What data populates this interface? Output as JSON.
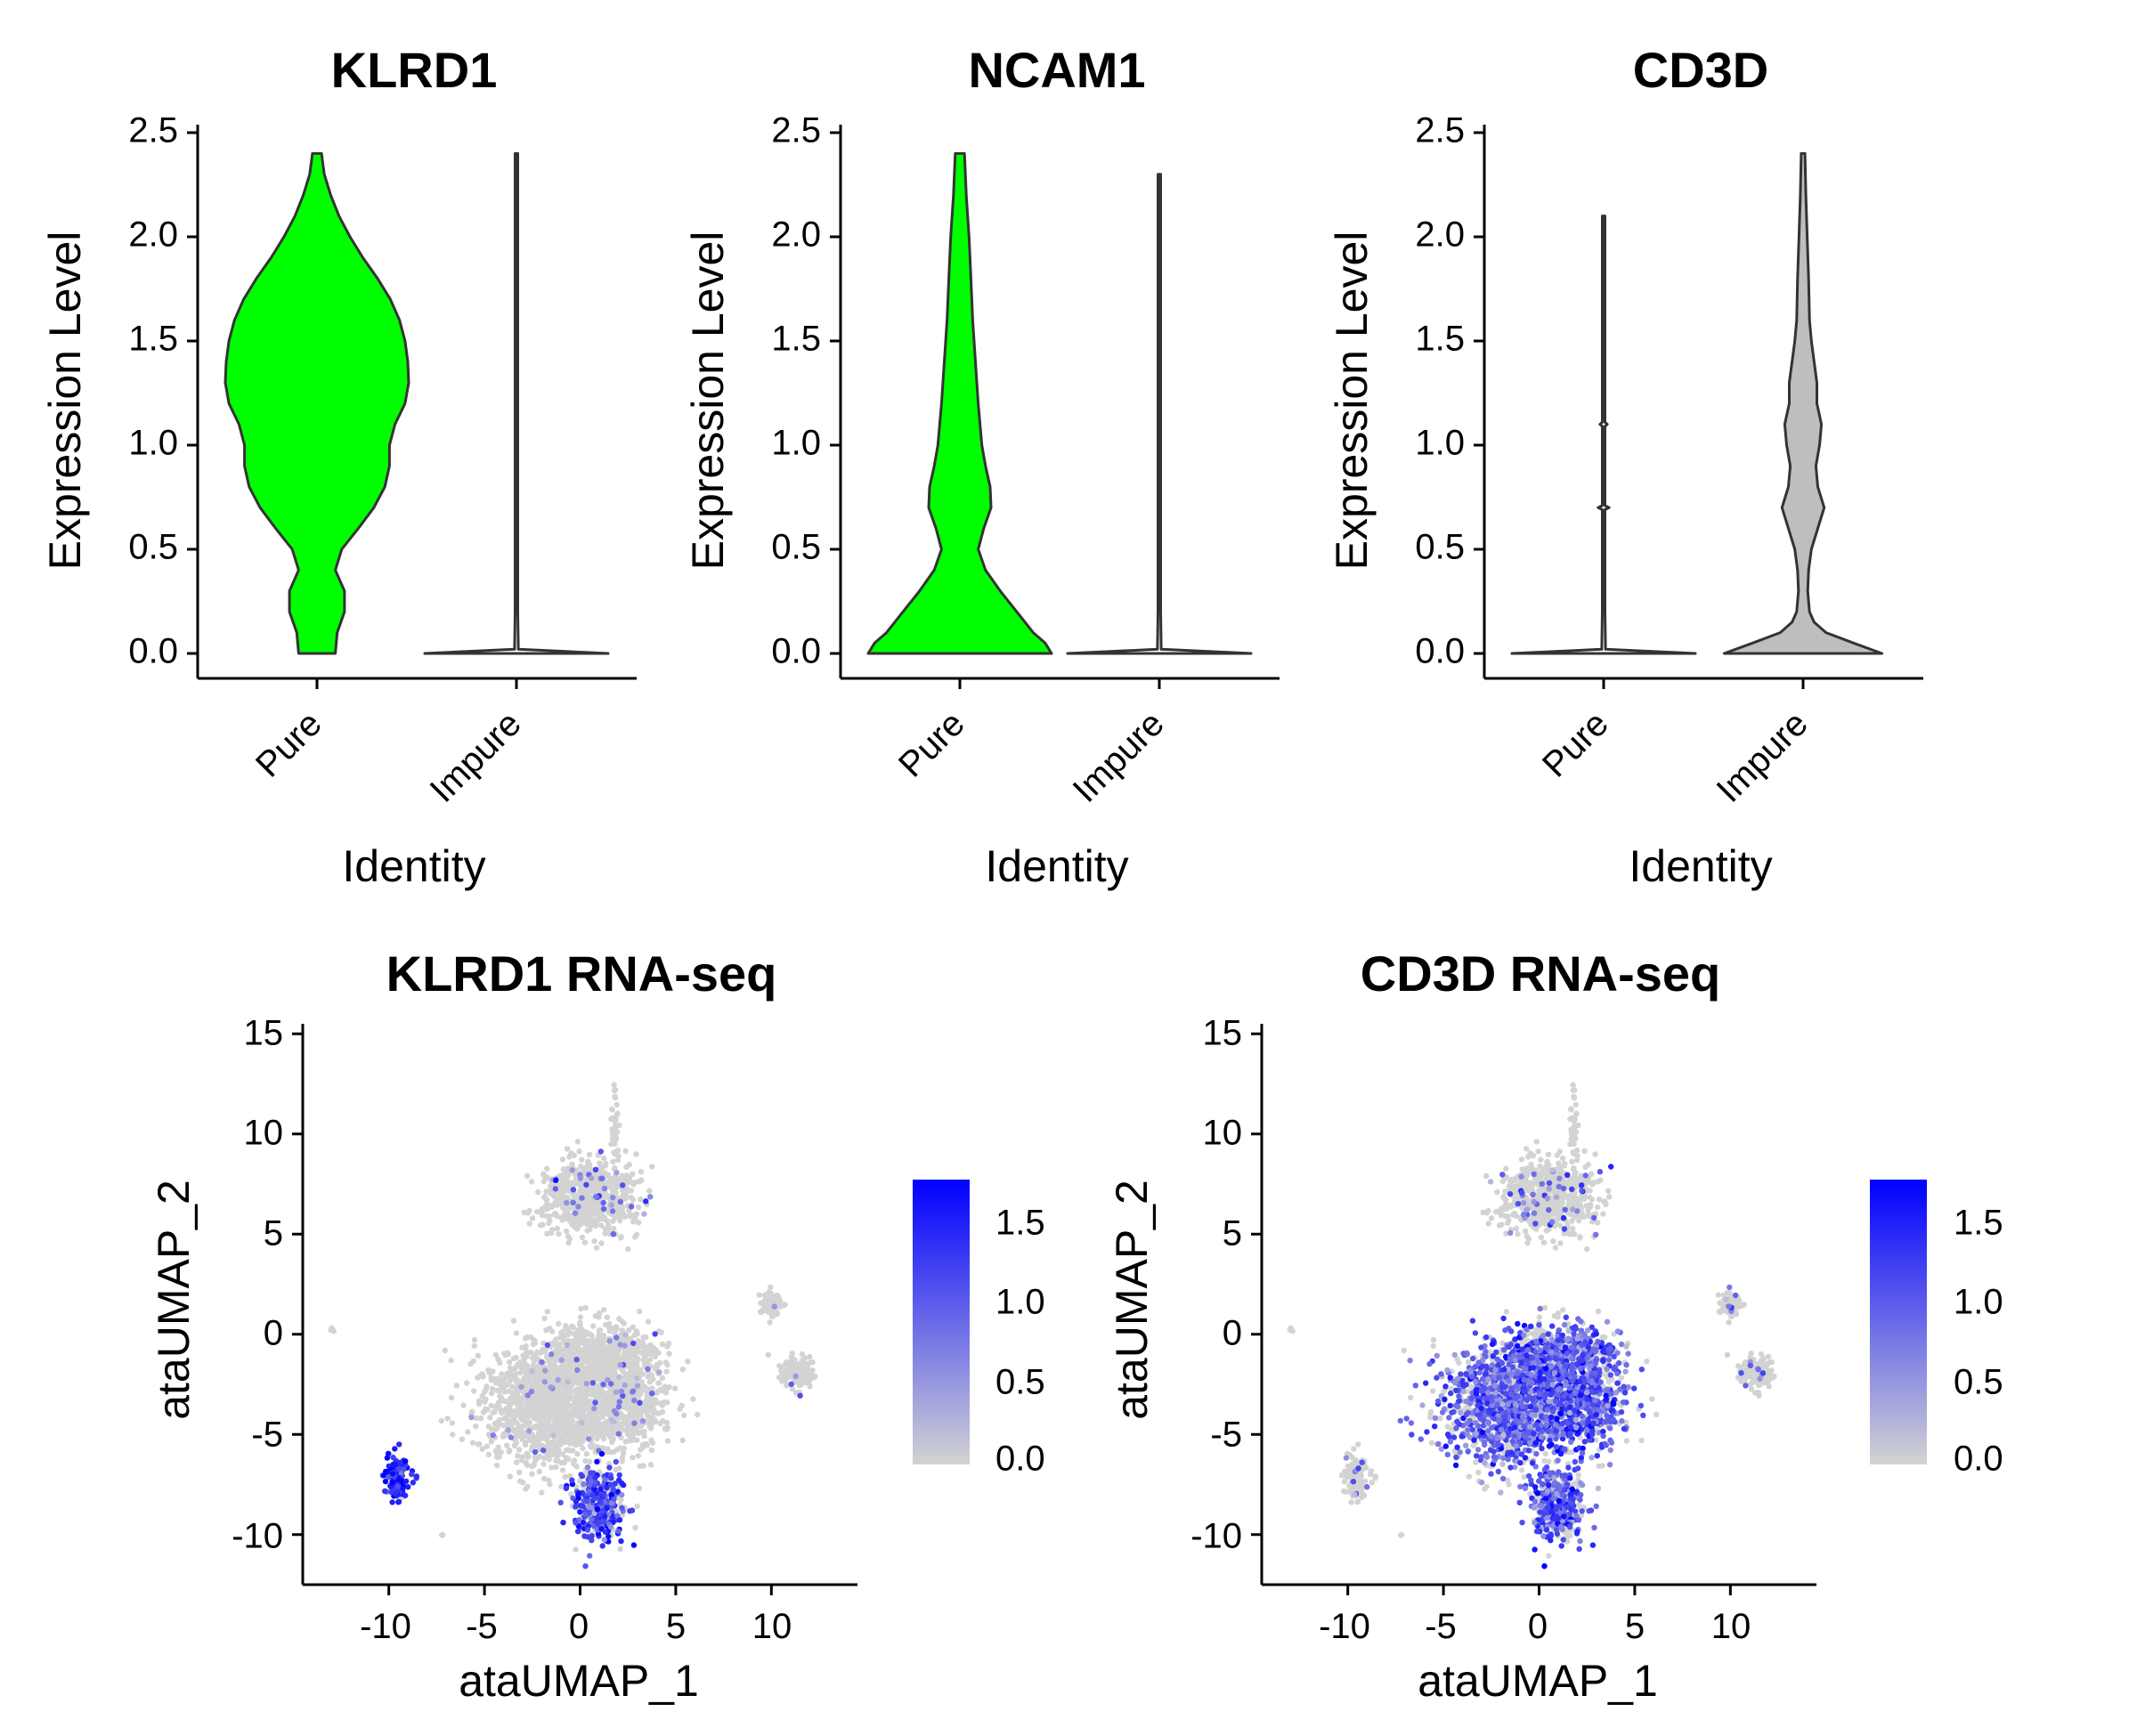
{
  "chart_data": [
    {
      "type": "violin",
      "title": "KLRD1",
      "xlabel": "Identity",
      "ylabel": "Expression Level",
      "categories": [
        "Pure",
        "Impure"
      ],
      "ylim": [
        0,
        2.5
      ],
      "yticks": [
        "0.0",
        "0.5",
        "1.0",
        "1.5",
        "2.0",
        "2.5"
      ],
      "series": [
        {
          "category": "Pure",
          "color": "#00ff00",
          "max": 2.4,
          "density": [
            [
              0,
              0.2
            ],
            [
              0.1,
              0.22
            ],
            [
              0.2,
              0.3
            ],
            [
              0.3,
              0.3
            ],
            [
              0.4,
              0.2
            ],
            [
              0.5,
              0.27
            ],
            [
              0.6,
              0.45
            ],
            [
              0.7,
              0.62
            ],
            [
              0.8,
              0.74
            ],
            [
              0.9,
              0.79
            ],
            [
              1.0,
              0.79
            ],
            [
              1.1,
              0.85
            ],
            [
              1.2,
              0.96
            ],
            [
              1.3,
              1.0
            ],
            [
              1.4,
              0.99
            ],
            [
              1.5,
              0.96
            ],
            [
              1.6,
              0.9
            ],
            [
              1.7,
              0.8
            ],
            [
              1.8,
              0.66
            ],
            [
              1.9,
              0.5
            ],
            [
              2.0,
              0.36
            ],
            [
              2.1,
              0.24
            ],
            [
              2.2,
              0.15
            ],
            [
              2.3,
              0.08
            ],
            [
              2.4,
              0.05
            ]
          ]
        },
        {
          "category": "Impure",
          "color": "#ffffff",
          "max": 2.4,
          "density": [
            [
              0,
              1.0
            ],
            [
              0.02,
              0.02
            ],
            [
              0.2,
              0.015
            ],
            [
              2.4,
              0.015
            ]
          ]
        }
      ]
    },
    {
      "type": "violin",
      "title": "NCAM1",
      "xlabel": "Identity",
      "ylabel": "Expression Level",
      "categories": [
        "Pure",
        "Impure"
      ],
      "ylim": [
        0,
        2.5
      ],
      "yticks": [
        "0.0",
        "0.5",
        "1.0",
        "1.5",
        "2.0",
        "2.5"
      ],
      "series": [
        {
          "category": "Pure",
          "color": "#00ff00",
          "max": 2.4,
          "density": [
            [
              0,
              1.0
            ],
            [
              0.05,
              0.93
            ],
            [
              0.1,
              0.8
            ],
            [
              0.2,
              0.62
            ],
            [
              0.3,
              0.44
            ],
            [
              0.4,
              0.28
            ],
            [
              0.5,
              0.2
            ],
            [
              0.6,
              0.26
            ],
            [
              0.7,
              0.34
            ],
            [
              0.8,
              0.33
            ],
            [
              0.9,
              0.28
            ],
            [
              1.0,
              0.24
            ],
            [
              1.2,
              0.2
            ],
            [
              1.4,
              0.17
            ],
            [
              1.6,
              0.14
            ],
            [
              1.8,
              0.12
            ],
            [
              2.0,
              0.1
            ],
            [
              2.2,
              0.07
            ],
            [
              2.4,
              0.05
            ]
          ]
        },
        {
          "category": "Impure",
          "color": "#ffffff",
          "max": 2.3,
          "density": [
            [
              0,
              1.0
            ],
            [
              0.02,
              0.02
            ],
            [
              0.2,
              0.015
            ],
            [
              2.3,
              0.015
            ]
          ]
        }
      ]
    },
    {
      "type": "violin",
      "title": "CD3D",
      "xlabel": "Identity",
      "ylabel": "Expression Level",
      "categories": [
        "Pure",
        "Impure"
      ],
      "ylim": [
        0,
        2.5
      ],
      "yticks": [
        "0.0",
        "0.5",
        "1.0",
        "1.5",
        "2.0",
        "2.5"
      ],
      "series": [
        {
          "category": "Pure",
          "color": "#ffffff",
          "max": 2.1,
          "density": [
            [
              0,
              1.0
            ],
            [
              0.02,
              0.02
            ],
            [
              0.2,
              0.015
            ],
            [
              0.69,
              0.015
            ],
            [
              0.7,
              0.06
            ],
            [
              0.71,
              0.015
            ],
            [
              1.09,
              0.015
            ],
            [
              1.1,
              0.04
            ],
            [
              1.11,
              0.015
            ],
            [
              2.1,
              0.015
            ]
          ]
        },
        {
          "category": "Impure",
          "color": "#bebebe",
          "max": 2.4,
          "density": [
            [
              0,
              0.86
            ],
            [
              0.05,
              0.55
            ],
            [
              0.1,
              0.25
            ],
            [
              0.15,
              0.12
            ],
            [
              0.2,
              0.07
            ],
            [
              0.3,
              0.05
            ],
            [
              0.4,
              0.06
            ],
            [
              0.5,
              0.09
            ],
            [
              0.6,
              0.16
            ],
            [
              0.7,
              0.23
            ],
            [
              0.8,
              0.16
            ],
            [
              0.9,
              0.14
            ],
            [
              1.0,
              0.18
            ],
            [
              1.1,
              0.2
            ],
            [
              1.2,
              0.15
            ],
            [
              1.3,
              0.15
            ],
            [
              1.4,
              0.12
            ],
            [
              1.5,
              0.09
            ],
            [
              1.6,
              0.07
            ],
            [
              1.8,
              0.06
            ],
            [
              2.0,
              0.045
            ],
            [
              2.2,
              0.03
            ],
            [
              2.4,
              0.02
            ]
          ]
        }
      ]
    },
    {
      "type": "scatter",
      "title": "KLRD1 RNA-seq",
      "xlabel": "ataUMAP_1",
      "ylabel": "ataUMAP_2",
      "xlim": [
        -14.5,
        14.5
      ],
      "ylim": [
        -12.5,
        15.5
      ],
      "xticks": [
        "-10",
        "-5",
        "0",
        "5",
        "10"
      ],
      "yticks": [
        "-10",
        "-5",
        "0",
        "5",
        "10",
        "15"
      ],
      "legend": {
        "position": "right",
        "type": "colorbar",
        "low_color": "#d3d3d3",
        "high_color": "#0000ff",
        "range": [
          0,
          1.8
        ],
        "ticks": [
          "0.0",
          "0.5",
          "1.0",
          "1.5"
        ]
      },
      "clusters": [
        {
          "cx": -1.5,
          "cy": -3.5,
          "sx": 2.4,
          "sy": 2.1,
          "n": 1400,
          "expr_prob": 0.02,
          "expr_mean": 0.6
        },
        {
          "cx": 2.5,
          "cy": -3.5,
          "sx": 1.4,
          "sy": 1.6,
          "n": 500,
          "expr_prob": 0.06,
          "expr_mean": 0.6
        },
        {
          "cx": 1.0,
          "cy": -1.0,
          "sx": 2.0,
          "sy": 1.0,
          "n": 500,
          "expr_prob": 0.02,
          "expr_mean": 0.6
        },
        {
          "cx": 1.0,
          "cy": -8.5,
          "sx": 0.9,
          "sy": 1.2,
          "n": 350,
          "expr_prob": 0.7,
          "expr_mean": 1.2
        },
        {
          "cx": 0.5,
          "cy": 6.8,
          "sx": 1.7,
          "sy": 1.2,
          "n": 650,
          "expr_prob": 0.05,
          "expr_mean": 0.8
        },
        {
          "cx": 1.8,
          "cy": 10.5,
          "sx": 0.12,
          "sy": 1.8,
          "n": 40,
          "expr_prob": 0.0,
          "expr_mean": 0.5
        },
        {
          "cx": 10.0,
          "cy": 1.5,
          "sx": 0.4,
          "sy": 0.4,
          "n": 70,
          "expr_prob": 0.05,
          "expr_mean": 0.8
        },
        {
          "cx": 11.3,
          "cy": -1.9,
          "sx": 0.6,
          "sy": 0.5,
          "n": 130,
          "expr_prob": 0.03,
          "expr_mean": 0.8
        },
        {
          "cx": -9.5,
          "cy": -7.2,
          "sx": 0.45,
          "sy": 0.7,
          "n": 160,
          "expr_prob": 0.92,
          "expr_mean": 1.5
        },
        {
          "cx": -13.0,
          "cy": 0.2,
          "sx": 0.08,
          "sy": 0.08,
          "n": 3,
          "expr_prob": 0.0,
          "expr_mean": 0.5
        },
        {
          "cx": -7.2,
          "cy": -10.0,
          "sx": 0.05,
          "sy": 0.05,
          "n": 2,
          "expr_prob": 0.0,
          "expr_mean": 0.5
        }
      ]
    },
    {
      "type": "scatter",
      "title": "CD3D RNA-seq",
      "xlabel": "ataUMAP_1",
      "ylabel": "ataUMAP_2",
      "xlim": [
        -14.5,
        14.5
      ],
      "ylim": [
        -12.5,
        15.5
      ],
      "xticks": [
        "-10",
        "-5",
        "0",
        "5",
        "10"
      ],
      "yticks": [
        "-10",
        "-5",
        "0",
        "5",
        "10",
        "15"
      ],
      "legend": {
        "position": "right",
        "type": "colorbar",
        "low_color": "#d3d3d3",
        "high_color": "#0000ff",
        "range": [
          0,
          1.8
        ],
        "ticks": [
          "0.0",
          "0.5",
          "1.0",
          "1.5"
        ]
      },
      "clusters": [
        {
          "cx": -1.5,
          "cy": -3.5,
          "sx": 2.4,
          "sy": 2.1,
          "n": 1400,
          "expr_prob": 0.62,
          "expr_mean": 1.0
        },
        {
          "cx": 2.5,
          "cy": -3.5,
          "sx": 1.4,
          "sy": 1.6,
          "n": 500,
          "expr_prob": 0.7,
          "expr_mean": 1.1
        },
        {
          "cx": 1.0,
          "cy": -1.0,
          "sx": 2.0,
          "sy": 1.0,
          "n": 500,
          "expr_prob": 0.62,
          "expr_mean": 1.0
        },
        {
          "cx": 1.0,
          "cy": -8.5,
          "sx": 0.9,
          "sy": 1.2,
          "n": 350,
          "expr_prob": 0.7,
          "expr_mean": 1.1
        },
        {
          "cx": 0.5,
          "cy": 6.8,
          "sx": 1.7,
          "sy": 1.2,
          "n": 650,
          "expr_prob": 0.1,
          "expr_mean": 0.8
        },
        {
          "cx": 1.8,
          "cy": 10.5,
          "sx": 0.12,
          "sy": 1.8,
          "n": 40,
          "expr_prob": 0.0,
          "expr_mean": 0.5
        },
        {
          "cx": 10.0,
          "cy": 1.5,
          "sx": 0.4,
          "sy": 0.4,
          "n": 70,
          "expr_prob": 0.08,
          "expr_mean": 0.7
        },
        {
          "cx": 11.3,
          "cy": -1.9,
          "sx": 0.6,
          "sy": 0.5,
          "n": 130,
          "expr_prob": 0.06,
          "expr_mean": 0.7
        },
        {
          "cx": -9.5,
          "cy": -7.2,
          "sx": 0.45,
          "sy": 0.7,
          "n": 160,
          "expr_prob": 0.06,
          "expr_mean": 0.8
        },
        {
          "cx": -13.0,
          "cy": 0.2,
          "sx": 0.08,
          "sy": 0.08,
          "n": 3,
          "expr_prob": 0.0,
          "expr_mean": 0.5
        },
        {
          "cx": -7.2,
          "cy": -10.0,
          "sx": 0.05,
          "sy": 0.05,
          "n": 2,
          "expr_prob": 0.0,
          "expr_mean": 0.5
        }
      ]
    }
  ]
}
